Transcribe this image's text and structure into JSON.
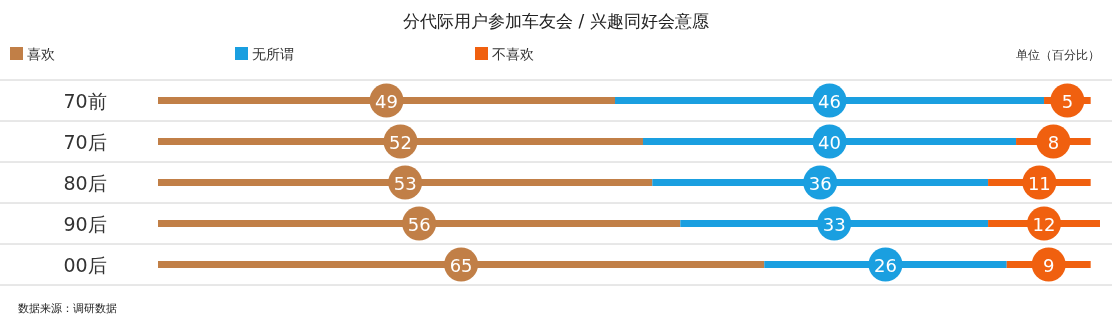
{
  "chart_data": {
    "type": "bar",
    "orientation": "horizontal",
    "stacked": true,
    "title": "分代际用户参加车友会 / 兴趣同好会意愿",
    "categories": [
      "70前",
      "70后",
      "80后",
      "90后",
      "00后"
    ],
    "series": [
      {
        "name": "喜欢",
        "color": "#c17f47",
        "values": [
          49,
          52,
          53,
          56,
          65
        ]
      },
      {
        "name": "无所谓",
        "color": "#1a9fe0",
        "values": [
          46,
          40,
          36,
          33,
          26
        ]
      },
      {
        "name": "不喜欢",
        "color": "#f0600f",
        "values": [
          5,
          8,
          11,
          12,
          9
        ]
      }
    ],
    "data_labels": true,
    "legend": "top",
    "grid": true,
    "annotations": [
      "单位（百分比）",
      "数据来源：调研数据"
    ]
  }
}
